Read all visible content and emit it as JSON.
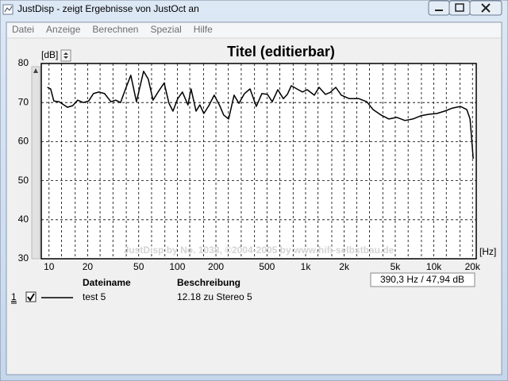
{
  "window": {
    "title": "JustDisp - zeigt Ergebnisse von JustOct an"
  },
  "menu": [
    "Datei",
    "Anzeige",
    "Berechnen",
    "Spezial",
    "Hilfe"
  ],
  "chart_data": {
    "type": "line",
    "title": "Titel (editierbar)",
    "y_label": "[dB]",
    "x_label": "[Hz]",
    "watermark": "JustDisp by No. 1038, ©2004-2005 by www.hifi-selbstbau.de",
    "xscale": "log",
    "grid": true,
    "xlim": [
      8.7,
      21400
    ],
    "ylim": [
      30,
      80
    ],
    "yticks": [
      30,
      40,
      50,
      60,
      70,
      80
    ],
    "xticks": [
      10,
      20,
      50,
      100,
      200,
      500,
      {
        "value": 1000,
        "label": "1k"
      },
      {
        "value": 2000,
        "label": "2k"
      },
      {
        "value": 5000,
        "label": "5k"
      },
      {
        "value": 10000,
        "label": "10k"
      },
      {
        "value": 20000,
        "label": "20k"
      }
    ],
    "xgrid_minor": [
      12.5,
      16,
      25,
      31.5,
      40,
      63,
      80,
      125,
      160,
      250,
      315,
      400,
      630,
      800,
      1250,
      1600,
      2500,
      3150,
      4000,
      6300,
      8000,
      12500,
      16000
    ],
    "x": [
      9.7,
      10.3,
      10.9,
      12.0,
      13.9,
      15.3,
      16.7,
      18.5,
      20.4,
      22.2,
      24.5,
      27.1,
      30.4,
      33.1,
      36.1,
      39.3,
      43.4,
      48.0,
      54.6,
      59.4,
      64.7,
      71.5,
      79.0,
      86.1,
      92.5,
      100.7,
      109.6,
      121,
      128,
      140,
      150,
      161,
      176,
      194,
      214,
      230,
      251,
      277,
      302,
      334,
      369,
      413,
      456,
      504,
      550,
      607,
      671,
      721,
      774,
      855,
      945,
      1029,
      1169,
      1274,
      1429,
      1556,
      1719,
      1900,
      2192,
      2600,
      3000,
      3360,
      3873,
      4467,
      5152,
      5943,
      6854,
      7906,
      9120,
      10520,
      12130,
      13990,
      16110,
      18070,
      19140,
      20280
    ],
    "series": [
      {
        "name": "test 5",
        "color": "#000000",
        "values": [
          73.9,
          73.5,
          70.4,
          70.2,
          68.8,
          69.2,
          70.6,
          70.0,
          70.4,
          72.3,
          72.7,
          72.3,
          70.2,
          70.6,
          70.0,
          73.3,
          77.0,
          70.2,
          78.0,
          76.0,
          70.6,
          72.9,
          75.0,
          69.8,
          67.8,
          71.0,
          72.7,
          69.4,
          73.5,
          67.8,
          69.4,
          67.2,
          69.2,
          71.9,
          69.2,
          66.8,
          65.8,
          71.9,
          69.8,
          72.3,
          73.5,
          69.0,
          72.3,
          72.1,
          70.2,
          73.3,
          71.0,
          72.1,
          74.3,
          73.5,
          72.7,
          73.3,
          71.9,
          73.9,
          72.1,
          72.6,
          73.9,
          71.9,
          71.0,
          71.0,
          70.2,
          68.2,
          66.8,
          65.8,
          66.2,
          65.4,
          65.8,
          66.6,
          67.0,
          67.2,
          67.8,
          68.6,
          69.0,
          68.2,
          65.8,
          55.6
        ]
      }
    ]
  },
  "readout": "390,3 Hz / 47,94 dB",
  "file_list": {
    "headers": [
      "Dateiname",
      "Beschreibung"
    ],
    "rows": [
      {
        "index": "1",
        "description": "12.18 zu Stereo 5"
      }
    ]
  }
}
